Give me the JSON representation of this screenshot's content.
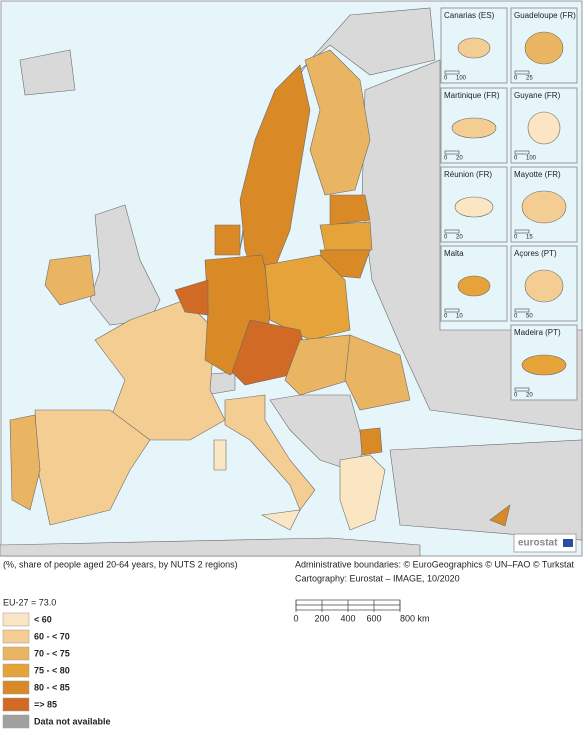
{
  "map": {
    "insets": [
      {
        "label": "Canarias (ES)",
        "scale": [
          "0",
          "100"
        ]
      },
      {
        "label": "Guadeloupe (FR)",
        "scale": [
          "0",
          "25"
        ]
      },
      {
        "label": "Martinique (FR)",
        "scale": [
          "0",
          "20"
        ]
      },
      {
        "label": "Guyane (FR)",
        "scale": [
          "0",
          "100"
        ]
      },
      {
        "label": "Réunion (FR)",
        "scale": [
          "0",
          "20"
        ]
      },
      {
        "label": "Mayotte (FR)",
        "scale": [
          "0",
          "15"
        ]
      },
      {
        "label": "Malta",
        "scale": [
          "0",
          "10"
        ]
      },
      {
        "label": "Açores (PT)",
        "scale": [
          "0",
          "50"
        ]
      },
      {
        "label": "Madeira (PT)",
        "scale": [
          "0",
          "20"
        ]
      }
    ],
    "logo": "eurostat"
  },
  "caption": "(%, share of people aged 20-64 years, by NUTS 2 regions)",
  "attribution": [
    "Administrative boundaries: © EuroGeographics © UN–FAO © Turkstat",
    "Cartography: Eurostat – IMAGE, 10/2020"
  ],
  "scale_bar": [
    "0",
    "200",
    "400",
    "600",
    "800 km"
  ],
  "legend": {
    "note": "EU-27 = 73.0",
    "items": [
      {
        "label": "< 60",
        "color": "#fbe6c4"
      },
      {
        "label": "60 - < 70",
        "color": "#f3cd92"
      },
      {
        "label": "70 - < 75",
        "color": "#eab562"
      },
      {
        "label": "75 - < 80",
        "color": "#e5a33a"
      },
      {
        "label": "80 - < 85",
        "color": "#d98a26"
      },
      {
        "label": "=> 85",
        "color": "#d06a24"
      },
      {
        "label": "Data not available",
        "color": "#a0a0a0"
      }
    ]
  }
}
